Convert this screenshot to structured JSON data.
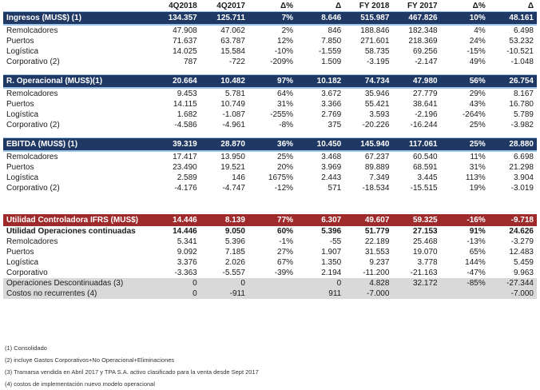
{
  "header": [
    "",
    "4Q2018",
    "4Q2017",
    "Δ%",
    "Δ",
    "FY 2018",
    "FY 2017",
    "Δ%",
    "Δ"
  ],
  "sections": {
    "ingresos": {
      "title": [
        "Ingresos (MUS$) (1)",
        "134.357",
        "125.711",
        "7%",
        "8.646",
        "515.987",
        "467.826",
        "10%",
        "48.161"
      ],
      "rows": [
        [
          "Remolcadores",
          "47.908",
          "47.062",
          "2%",
          "846",
          "188.846",
          "182.348",
          "4%",
          "6.498"
        ],
        [
          "Puertos",
          "71.637",
          "63.787",
          "12%",
          "7.850",
          "271.601",
          "218.369",
          "24%",
          "53.232"
        ],
        [
          "Logística",
          "14.025",
          "15.584",
          "-10%",
          "-1.559",
          "58.735",
          "69.256",
          "-15%",
          "-10.521"
        ],
        [
          "Corporativo (2)",
          "787",
          "-722",
          "-209%",
          "1.509",
          "-3.195",
          "-2.147",
          "49%",
          "-1.048"
        ]
      ]
    },
    "operacional": {
      "title": [
        "R. Operacional (MUS$)(1)",
        "20.664",
        "10.482",
        "97%",
        "10.182",
        "74.734",
        "47.980",
        "56%",
        "26.754"
      ],
      "rows": [
        [
          "Remolcadores",
          "9.453",
          "5.781",
          "64%",
          "3.672",
          "35.946",
          "27.779",
          "29%",
          "8.167"
        ],
        [
          "Puertos",
          "14.115",
          "10.749",
          "31%",
          "3.366",
          "55.421",
          "38.641",
          "43%",
          "16.780"
        ],
        [
          "Logística",
          "1.682",
          "-1.087",
          "-255%",
          "2.769",
          "3.593",
          "-2.196",
          "-264%",
          "5.789"
        ],
        [
          "Corporativo (2)",
          "-4.586",
          "-4.961",
          "-8%",
          "375",
          "-20.226",
          "-16.244",
          "25%",
          "-3.982"
        ]
      ]
    },
    "ebitda": {
      "title": [
        "EBITDA (MUS$) (1)",
        "39.319",
        "28.870",
        "36%",
        "10.450",
        "145.940",
        "117.061",
        "25%",
        "28.880"
      ],
      "rows": [
        [
          "Remolcadores",
          "17.417",
          "13.950",
          "25%",
          "3.468",
          "67.237",
          "60.540",
          "11%",
          "6.698"
        ],
        [
          "Puertos",
          "23.490",
          "19.521",
          "20%",
          "3.969",
          "89.889",
          "68.591",
          "31%",
          "21.298"
        ],
        [
          "Logística",
          "2.589",
          "146",
          "1675%",
          "2.443",
          "7.349",
          "3.445",
          "113%",
          "3.904"
        ],
        [
          "Corporativo (2)",
          "-4.176",
          "-4.747",
          "-12%",
          "571",
          "-18.534",
          "-15.515",
          "19%",
          "-3.019"
        ]
      ]
    },
    "utilidad": {
      "title": [
        "Utilidad Controladora IFRS (MUS$)",
        "14.446",
        "8.139",
        "77%",
        "6.307",
        "49.607",
        "59.325",
        "-16%",
        "-9.718"
      ],
      "continuadas": [
        "Utilidad Operaciones continuadas",
        "14.446",
        "9.050",
        "60%",
        "5.396",
        "51.779",
        "27.153",
        "91%",
        "24.626"
      ],
      "rows": [
        [
          "Remolcadores",
          "5.341",
          "5.396",
          "-1%",
          "-55",
          "22.189",
          "25.468",
          "-13%",
          "-3.279"
        ],
        [
          "Puertos",
          "9.092",
          "7.185",
          "27%",
          "1.907",
          "31.553",
          "19.070",
          "65%",
          "12.483"
        ],
        [
          "Logística",
          "3.376",
          "2.026",
          "67%",
          "1.350",
          "9.237",
          "3.778",
          "144%",
          "5.459"
        ],
        [
          "Corporativo",
          "-3.363",
          "-5.557",
          "-39%",
          "2.194",
          "-11.200",
          "-21.163",
          "-47%",
          "9.963"
        ]
      ],
      "descontinuadas": [
        "Operaciones Descontinuadas (3)",
        "0",
        "0",
        "",
        "0",
        "4.828",
        "32.172",
        "-85%",
        "-27.344"
      ],
      "no_recurrentes": [
        "Costos no recurrentes (4)",
        "0",
        "-911",
        "",
        "911",
        "-7.000",
        "",
        "",
        "-7.000"
      ]
    }
  },
  "notes": [
    "(1) Consolidado",
    "(2) incluye Gastos Corporativos+No Operacional+Eliminaciones",
    "(3) Tramarsa vendida en Abril 2017 y TPA S.A. activo clasificado para la venta desde Sept 2017",
    "(4) costos de implementación nuevo modelo operacional"
  ]
}
